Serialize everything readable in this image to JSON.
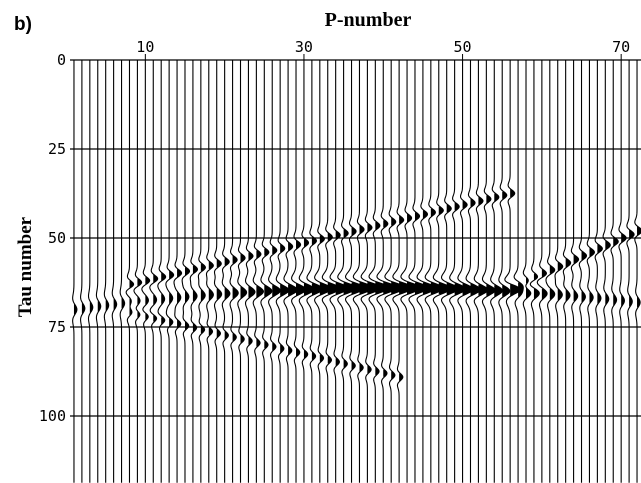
{
  "panel_label": "b)",
  "chart_data": {
    "type": "seismic-wiggle",
    "title": "",
    "xlabel": "P-number",
    "ylabel": "Tau number",
    "x_ticks": [
      10,
      30,
      50,
      70
    ],
    "y_ticks": [
      0,
      25,
      50,
      75,
      100
    ],
    "xlim": [
      1,
      72
    ],
    "ylim": [
      0,
      115
    ],
    "y_inverted": true,
    "x_axis_position": "top",
    "horizontal_grid_at": [
      0,
      25,
      50,
      75,
      100
    ],
    "trace_count": 72,
    "events": [
      {
        "name": "main",
        "tau_center": 64,
        "p_min": 1,
        "p_max": 72,
        "p_peak": 40,
        "tau_curvature": 0.004,
        "notes": "strong flat reflection, dense fill near p 22-48"
      },
      {
        "name": "upper-dipping",
        "tau_at_p10": 62,
        "tau_at_p55": 38,
        "p_min": 8,
        "p_max": 56
      },
      {
        "name": "lower-dipping",
        "tau_at_p10": 72,
        "tau_at_p40": 88,
        "p_min": 8,
        "p_max": 42
      },
      {
        "name": "right-shallow",
        "tau_at_p60": 60,
        "tau_at_p72": 48,
        "p_min": 56,
        "p_max": 72
      }
    ]
  }
}
